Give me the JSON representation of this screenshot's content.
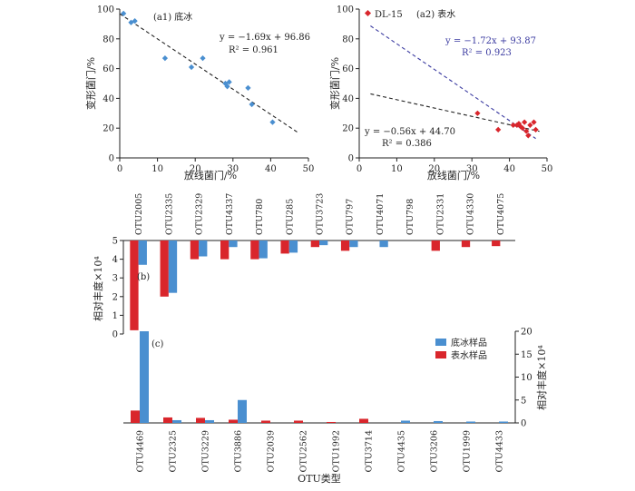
{
  "colors": {
    "blue": "#4a8fd0",
    "red": "#d9262c",
    "navy": "#3c3c8c",
    "axis": "#222222",
    "fit_dark": "#222222",
    "fit_navy": "#3a3aa0"
  },
  "chart_data": [
    {
      "id": "a1",
      "type": "scatter",
      "panel_label": "(a1) 底冰",
      "xlabel": "放线菌门/%",
      "ylabel": "变形菌门/%",
      "xlim": [
        0,
        50
      ],
      "ylim": [
        0,
        100
      ],
      "x_ticks": [
        "0",
        "10",
        "20",
        "30",
        "40",
        "50"
      ],
      "y_ticks": [
        "0",
        "20",
        "40",
        "60",
        "80",
        "100"
      ],
      "series": [
        {
          "points": [
            [
              1,
              97
            ],
            [
              3,
              91
            ],
            [
              4,
              92
            ],
            [
              12,
              67
            ],
            [
              19,
              61
            ],
            [
              22,
              67
            ],
            [
              28,
              50
            ],
            [
              28.5,
              48
            ],
            [
              29,
              51
            ],
            [
              34,
              47
            ],
            [
              35,
              36
            ],
            [
              40.5,
              24
            ]
          ]
        }
      ],
      "fit": {
        "slope": -1.69,
        "intercept": 96.86,
        "x_range": [
          0,
          47
        ],
        "equation": "y = −1.69x + 96.86",
        "r2": "R² = 0.961"
      }
    },
    {
      "id": "a2",
      "type": "scatter",
      "panel_label": "(a2) 表水",
      "xlabel": "放线菌门/%",
      "ylabel": "变形菌门/%",
      "xlim": [
        0,
        50
      ],
      "ylim": [
        0,
        100
      ],
      "x_ticks": [
        "0",
        "10",
        "20",
        "30",
        "40",
        "50"
      ],
      "y_ticks": [
        "0",
        "20",
        "40",
        "60",
        "80",
        "100"
      ],
      "legend": {
        "label": "DL-15"
      },
      "series": [
        {
          "name": "DL-15",
          "points": [
            [
              31.5,
              30
            ],
            [
              37,
              19
            ],
            [
              41,
              22
            ],
            [
              42,
              22
            ],
            [
              42.5,
              23
            ],
            [
              43,
              21
            ],
            [
              43.5,
              20
            ],
            [
              44,
              24
            ],
            [
              44.5,
              18
            ],
            [
              45,
              15
            ],
            [
              45.5,
              22
            ],
            [
              46.5,
              24
            ],
            [
              47,
              19
            ]
          ]
        }
      ],
      "fits": [
        {
          "slope": -1.72,
          "intercept": 93.87,
          "x_range": [
            3,
            47
          ],
          "equation": "y = −1.72x + 93.87",
          "r2": "R² = 0.923"
        },
        {
          "slope": -0.56,
          "intercept": 44.7,
          "x_range": [
            3,
            48
          ],
          "equation": "y = −0.56x + 44.70",
          "r2": "R² = 0.386"
        }
      ]
    },
    {
      "id": "b",
      "type": "bar",
      "panel_label": "(b)",
      "ylabel": "相对丰度×10⁴",
      "ylim": [
        0,
        5
      ],
      "y_ticks": [
        "0",
        "1",
        "2",
        "3",
        "4",
        "5"
      ],
      "categories": [
        "OTU2005",
        "OTU2335",
        "OTU2329",
        "OTU4337",
        "OTU780",
        "OTU285",
        "OTU3723",
        "OTU797",
        "OTU4071",
        "OTU798",
        "OTU2331",
        "OTU4330",
        "OTU4075"
      ],
      "series": [
        {
          "name": "表水样品",
          "values": [
            4.8,
            3.0,
            1.0,
            1.0,
            1.0,
            0.7,
            0.35,
            0.55,
            0.0,
            0.0,
            0.55,
            0.35,
            0.3
          ]
        },
        {
          "name": "底冰样品",
          "values": [
            1.3,
            2.8,
            0.85,
            0.35,
            0.95,
            0.65,
            0.25,
            0.35,
            0.35,
            0.0,
            0.0,
            0.0,
            0.0
          ]
        }
      ]
    },
    {
      "id": "c",
      "type": "bar",
      "panel_label": "(c)",
      "ylabel": "相对丰度×10⁴",
      "xlabel": "OTU类型",
      "ylim": [
        0,
        20
      ],
      "y_ticks": [
        "0",
        "5",
        "10",
        "15",
        "20"
      ],
      "categories": [
        "OTU4469",
        "OTU2325",
        "OTU3229",
        "OTU3886",
        "OTU2039",
        "OTU2562",
        "OTU1992",
        "OTU3714",
        "OTU4435",
        "OTU3206",
        "OTU1999",
        "OTU4433"
      ],
      "legend": [
        {
          "label": "底冰样品"
        },
        {
          "label": "表水样品"
        }
      ],
      "series": [
        {
          "name": "表水样品",
          "values": [
            2.7,
            1.2,
            1.1,
            0.7,
            0.5,
            0.5,
            0.2,
            0.9,
            0.0,
            0.0,
            0.0,
            0.0
          ]
        },
        {
          "name": "底冰样品",
          "values": [
            20.0,
            0.6,
            0.6,
            5.0,
            0.0,
            0.0,
            0.0,
            0.0,
            0.5,
            0.4,
            0.3,
            0.3
          ]
        }
      ]
    }
  ]
}
